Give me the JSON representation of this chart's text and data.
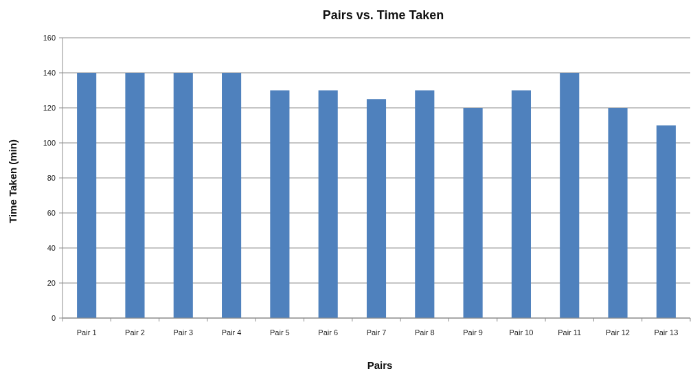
{
  "chart_data": {
    "type": "bar",
    "title": "Pairs vs. Time Taken",
    "xlabel": "Pairs",
    "ylabel": "Time Taken (min)",
    "categories": [
      "Pair 1",
      "Pair 2",
      "Pair 3",
      "Pair 4",
      "Pair 5",
      "Pair 6",
      "Pair 7",
      "Pair 8",
      "Pair 9",
      "Pair 10",
      "Pair 11",
      "Pair 12",
      "Pair 13"
    ],
    "values": [
      140,
      140,
      140,
      140,
      130,
      130,
      125,
      130,
      120,
      130,
      140,
      120,
      110
    ],
    "color": "#4f81bd",
    "ylim": [
      0,
      160
    ],
    "yticks": [
      0,
      20,
      40,
      60,
      80,
      100,
      120,
      140,
      160
    ],
    "grid": "y"
  }
}
